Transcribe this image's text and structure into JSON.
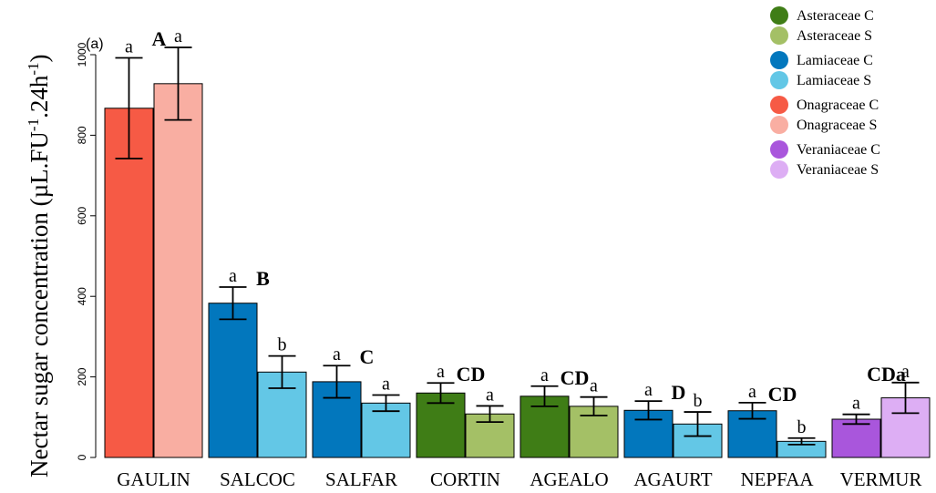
{
  "panel_label": "(a)",
  "chart_data": {
    "type": "bar",
    "ylabel_main": "Nectar sugar concentration (µL.FU",
    "ylabel_sup1": "-1",
    "ylabel_mid": ".24h",
    "ylabel_sup2": "-1",
    "ylabel_end": ")",
    "ylim": [
      0,
      1000
    ],
    "yticks": [
      0,
      200,
      400,
      600,
      800,
      1000
    ],
    "ytick_labels": [
      "0",
      "200",
      "400",
      "600",
      "800",
      "1000"
    ],
    "grid": false,
    "legend_position": "top-right",
    "categories": [
      "GAULIN",
      "SALCOC",
      "SALFAR",
      "CORTIN",
      "AGEALO",
      "AGAURT",
      "NEPFAA",
      "VERMUR"
    ],
    "groups": [
      {
        "category": "GAULIN",
        "family": "Onagraceae",
        "C": {
          "value": 867,
          "err": 125,
          "letter": "a"
        },
        "S": {
          "value": 928,
          "err": 90,
          "letter": "a"
        },
        "group_letter": "A"
      },
      {
        "category": "SALCOC",
        "family": "Lamiaceae",
        "C": {
          "value": 383,
          "err": 40,
          "letter": "a"
        },
        "S": {
          "value": 212,
          "err": 40,
          "letter": "b"
        },
        "group_letter": "B"
      },
      {
        "category": "SALFAR",
        "family": "Lamiaceae",
        "C": {
          "value": 188,
          "err": 40,
          "letter": "a"
        },
        "S": {
          "value": 135,
          "err": 20,
          "letter": "a"
        },
        "group_letter": "C"
      },
      {
        "category": "CORTIN",
        "family": "Asteraceae",
        "C": {
          "value": 160,
          "err": 25,
          "letter": "a"
        },
        "S": {
          "value": 108,
          "err": 20,
          "letter": "a"
        },
        "group_letter": "CD"
      },
      {
        "category": "AGEALO",
        "family": "Asteraceae",
        "C": {
          "value": 152,
          "err": 25,
          "letter": "a"
        },
        "S": {
          "value": 127,
          "err": 23,
          "letter": "a"
        },
        "group_letter": "CD"
      },
      {
        "category": "AGAURT",
        "family": "Lamiaceae",
        "C": {
          "value": 117,
          "err": 23,
          "letter": "a"
        },
        "S": {
          "value": 83,
          "err": 30,
          "letter": "b"
        },
        "group_letter": "D"
      },
      {
        "category": "NEPFAA",
        "family": "Lamiaceae",
        "C": {
          "value": 116,
          "err": 20,
          "letter": "a"
        },
        "S": {
          "value": 40,
          "err": 8,
          "letter": "b"
        },
        "group_letter": "CD"
      },
      {
        "category": "VERMUR",
        "family": "Veraniaceae",
        "C": {
          "value": 95,
          "err": 12,
          "letter": "a"
        },
        "S": {
          "value": 148,
          "err": 38,
          "letter": "a"
        },
        "group_letter": "CDa"
      }
    ],
    "colors": {
      "Asteraceae": {
        "C": "#3f7d16",
        "S": "#a4c066"
      },
      "Lamiaceae": {
        "C": "#0277bd",
        "S": "#63c7e6"
      },
      "Onagraceae": {
        "C": "#f65a45",
        "S": "#f9aea2"
      },
      "Veraniaceae": {
        "C": "#a956dc",
        "S": "#ddaef4"
      }
    },
    "legend": [
      {
        "label": "Asteraceae C",
        "color": "#3f7d16"
      },
      {
        "label": "Asteraceae S",
        "color": "#a4c066"
      },
      {
        "label": "Lamiaceae C",
        "color": "#0277bd"
      },
      {
        "label": "Lamiaceae S",
        "color": "#63c7e6"
      },
      {
        "label": "Onagraceae C",
        "color": "#f65a45"
      },
      {
        "label": "Onagraceae S",
        "color": "#f9aea2"
      },
      {
        "label": "Veraniaceae C",
        "color": "#a956dc"
      },
      {
        "label": "Veraniaceae S",
        "color": "#ddaef4"
      }
    ]
  }
}
